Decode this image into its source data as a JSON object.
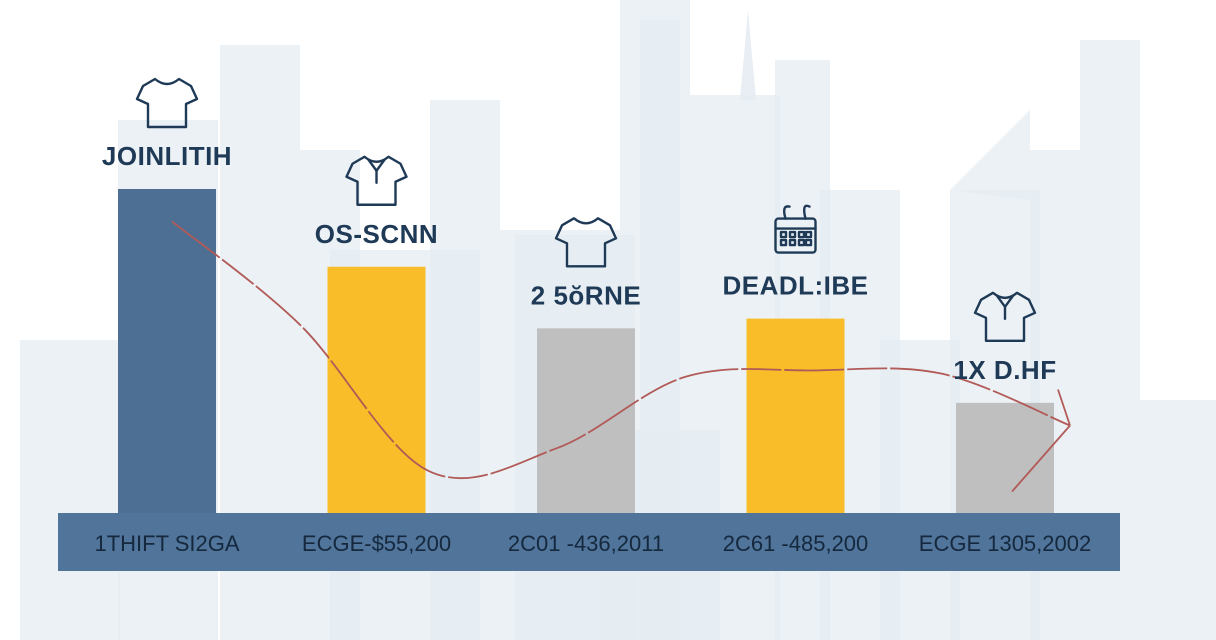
{
  "colors": {
    "background": "#ffffff",
    "skyline": "#e6ecf2",
    "band": "#50749a",
    "band_text": "#15283d",
    "label_text": "#1f3a56",
    "trend_line": "#b15a57"
  },
  "chart_data": {
    "type": "bar",
    "title": "",
    "xlabel": "",
    "ylabel": "",
    "ylim": [
      0,
      100
    ],
    "grid": false,
    "bars": [
      {
        "label": "JOINLITIH",
        "band_text": "1THIFT SI2GA",
        "value": 100,
        "color": "#4d6f93",
        "icon": "t-shirt-icon"
      },
      {
        "label": "OS-SCNN",
        "band_text": "ECGE-$55,200",
        "value": 76,
        "color": "#f8bd28",
        "icon": "polo-shirt-icon"
      },
      {
        "label": "2 5ŏRNE",
        "band_text": "2C01 -436,2011",
        "value": 57,
        "color": "#bfbfbf",
        "icon": "t-shirt-icon"
      },
      {
        "label": "DEADL:IBE",
        "band_text": "2C61 -485,200",
        "value": 60,
        "color": "#f8bd28",
        "icon": "calendar-icon"
      },
      {
        "label": "1X D.HF",
        "band_text": "ECGE 1305,2002",
        "value": 34,
        "color": "#bfbfbf",
        "icon": "polo-shirt-icon"
      }
    ],
    "trend_line": {
      "color": "#b15a57",
      "values": [
        90,
        58,
        13,
        20,
        42,
        44,
        43,
        27
      ]
    }
  }
}
